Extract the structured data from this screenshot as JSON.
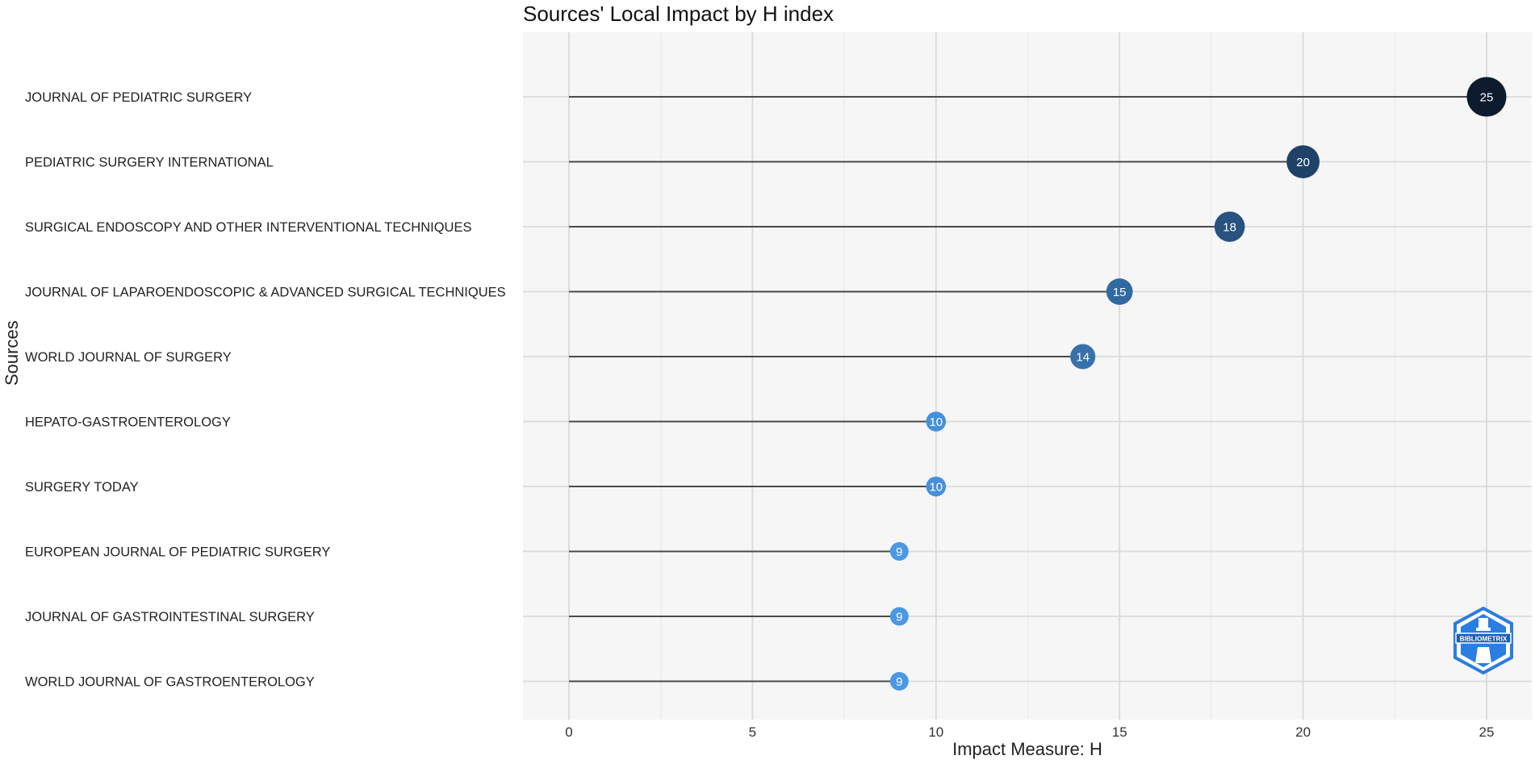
{
  "chart_data": {
    "type": "lollipop",
    "title": "Sources' Local Impact by H index",
    "xlabel": "Impact Measure: H",
    "ylabel": "Sources",
    "xlim": [
      0,
      26
    ],
    "x_ticks": [
      0,
      5,
      10,
      15,
      20,
      25
    ],
    "grid": true,
    "categories": [
      "JOURNAL OF PEDIATRIC SURGERY",
      "PEDIATRIC SURGERY INTERNATIONAL",
      "SURGICAL ENDOSCOPY AND OTHER INTERVENTIONAL TECHNIQUES",
      "JOURNAL OF LAPAROENDOSCOPIC & ADVANCED SURGICAL TECHNIQUES",
      "WORLD JOURNAL OF SURGERY",
      "HEPATO-GASTROENTEROLOGY",
      "SURGERY TODAY",
      "EUROPEAN JOURNAL OF PEDIATRIC SURGERY",
      "JOURNAL OF GASTROINTESTINAL SURGERY",
      "WORLD JOURNAL OF GASTROENTEROLOGY"
    ],
    "values": [
      25,
      20,
      18,
      15,
      14,
      10,
      10,
      9,
      9,
      9
    ],
    "point_labels": [
      "25",
      "20",
      "18",
      "15",
      "14",
      "10",
      "10",
      "9",
      "9",
      "9"
    ],
    "color_scale": {
      "low": "#4a98e6",
      "high": "#0d1b2e"
    },
    "colors": {
      "background": "#ffffff",
      "plot_background": "#f6f6f6",
      "grid_major": "#dadada",
      "grid_minor": "#e9e9e9",
      "segment": "#4a4a4a"
    }
  },
  "watermark": {
    "text": "BIBLIOMETRIX",
    "color": "#2a7de1"
  }
}
